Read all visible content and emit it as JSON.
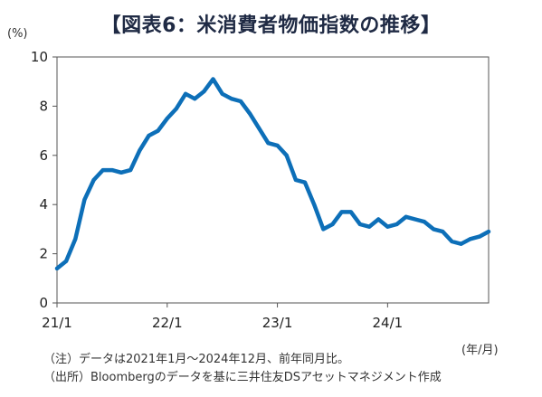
{
  "title": "【図表6：米消費者物価指数の推移】",
  "y_unit_label": "(%)",
  "x_unit_label": "(年/月)",
  "notes": {
    "note1": "（注）データは2021年1月～2024年12月、前年同月比。",
    "note2": "（出所）Bloombergのデータを基に三井住友DSアセットマネジメント作成"
  },
  "colors": {
    "line": "#0d6fb8",
    "axis": "#555555"
  },
  "chart_data": {
    "type": "line",
    "title": "【図表6：米消費者物価指数の推移】",
    "xlabel": "",
    "ylabel": "(%)",
    "ylim": [
      0,
      10
    ],
    "yticks": [
      0,
      2,
      4,
      6,
      8,
      10
    ],
    "xticks": [
      "21/1",
      "22/1",
      "23/1",
      "24/1"
    ],
    "xtick_indices": [
      0,
      12,
      24,
      36
    ],
    "grid": false,
    "x": [
      "2021-01",
      "2021-02",
      "2021-03",
      "2021-04",
      "2021-05",
      "2021-06",
      "2021-07",
      "2021-08",
      "2021-09",
      "2021-10",
      "2021-11",
      "2021-12",
      "2022-01",
      "2022-02",
      "2022-03",
      "2022-04",
      "2022-05",
      "2022-06",
      "2022-07",
      "2022-08",
      "2022-09",
      "2022-10",
      "2022-11",
      "2022-12",
      "2023-01",
      "2023-02",
      "2023-03",
      "2023-04",
      "2023-05",
      "2023-06",
      "2023-07",
      "2023-08",
      "2023-09",
      "2023-10",
      "2023-11",
      "2023-12",
      "2024-01",
      "2024-02",
      "2024-03",
      "2024-04",
      "2024-05",
      "2024-06",
      "2024-07",
      "2024-08",
      "2024-09",
      "2024-10",
      "2024-11",
      "2024-12"
    ],
    "series": [
      {
        "values": [
          1.4,
          1.7,
          2.6,
          4.2,
          5.0,
          5.4,
          5.4,
          5.3,
          5.4,
          6.2,
          6.8,
          7.0,
          7.5,
          7.9,
          8.5,
          8.3,
          8.6,
          9.1,
          8.5,
          8.3,
          8.2,
          7.7,
          7.1,
          6.5,
          6.4,
          6.0,
          5.0,
          4.9,
          4.0,
          3.0,
          3.2,
          3.7,
          3.7,
          3.2,
          3.1,
          3.4,
          3.1,
          3.2,
          3.5,
          3.4,
          3.3,
          3.0,
          2.9,
          2.5,
          2.4,
          2.6,
          2.7,
          2.9
        ]
      }
    ]
  }
}
